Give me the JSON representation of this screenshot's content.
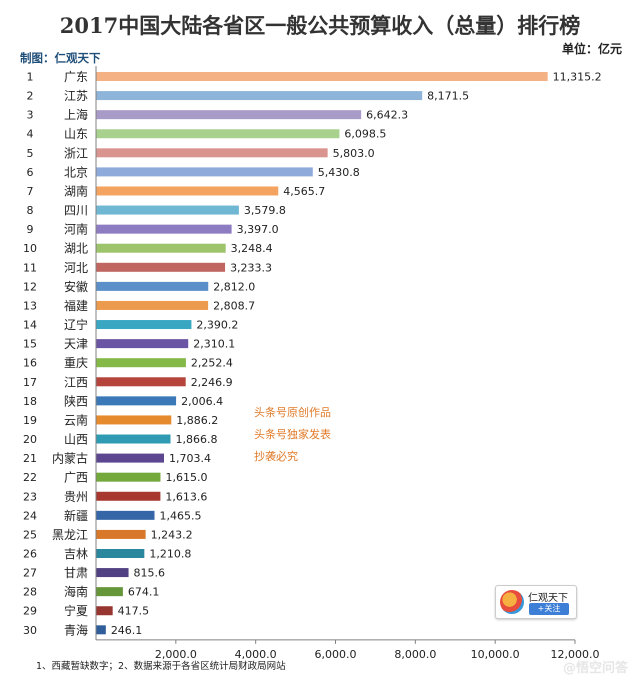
{
  "header": {
    "title": "2017中国大陆各省区一般公共预算收入（总量）排行榜",
    "maker": "制图：仁观天下",
    "unit": "单位：亿元"
  },
  "watermark": {
    "lines": [
      "头条号原创作品",
      "头条号独家发表",
      "抄袭必究"
    ],
    "badge_name": "仁观天下",
    "badge_follow": "+关注"
  },
  "footer": {
    "note": "1、西藏暂缺数字；2、数据来源于各省区统计局财政局网站",
    "site_mark": "@悟空问答"
  },
  "colors": {
    "title": "#333333",
    "maker": "#1f4e79",
    "watermark": "#e07b2a",
    "axis": "#808080"
  },
  "chart_data": {
    "type": "bar",
    "orientation": "horizontal",
    "title": "2017中国大陆各省区一般公共预算收入（总量）排行榜",
    "ylabel": "单位：亿元",
    "xlim": [
      0,
      12000
    ],
    "xticks": [
      2000,
      4000,
      6000,
      8000,
      10000,
      12000
    ],
    "xtick_labels": [
      "2,000.0",
      "4,000.0",
      "6,000.0",
      "8,000.0",
      "10,000.0",
      "12,000.0"
    ],
    "grid": false,
    "ranks": [
      "1",
      "2",
      "3",
      "4",
      "5",
      "6",
      "7",
      "8",
      "9",
      "10",
      "11",
      "12",
      "13",
      "14",
      "15",
      "16",
      "17",
      "18",
      "19",
      "20",
      "21",
      "22",
      "23",
      "24",
      "25",
      "26",
      "27",
      "28",
      "29",
      "30"
    ],
    "categories": [
      "广东",
      "江苏",
      "上海",
      "山东",
      "浙江",
      "北京",
      "湖南",
      "四川",
      "河南",
      "湖北",
      "河北",
      "安徽",
      "福建",
      "辽宁",
      "天津",
      "重庆",
      "江西",
      "陕西",
      "云南",
      "山西",
      "内蒙古",
      "广西",
      "贵州",
      "新疆",
      "黑龙江",
      "吉林",
      "甘肃",
      "海南",
      "宁夏",
      "青海"
    ],
    "values": [
      11315.2,
      8171.5,
      6642.3,
      6098.5,
      5803.0,
      5430.8,
      4565.7,
      3579.8,
      3397.0,
      3248.4,
      3233.3,
      2812.0,
      2808.7,
      2390.2,
      2310.1,
      2252.4,
      2246.9,
      2006.4,
      1886.2,
      1866.8,
      1703.4,
      1615.0,
      1613.6,
      1465.5,
      1243.2,
      1210.8,
      815.6,
      674.1,
      417.5,
      246.1
    ],
    "value_labels": [
      "11,315.2",
      "8,171.5",
      "6,642.3",
      "6,098.5",
      "5,803.0",
      "5,430.8",
      "4,565.7",
      "3,579.8",
      "3,397.0",
      "3,248.4",
      "3,233.3",
      "2,812.0",
      "2,808.7",
      "2,390.2",
      "2,310.1",
      "2,252.4",
      "2,246.9",
      "2,006.4",
      "1,886.2",
      "1,866.8",
      "1,703.4",
      "1,615.0",
      "1,613.6",
      "1,465.5",
      "1,243.2",
      "1,210.8",
      "815.6",
      "674.1",
      "417.5",
      "246.1"
    ],
    "bar_colors": [
      "#f4b183",
      "#8fb4d9",
      "#a99bc7",
      "#a9d18e",
      "#d9948f",
      "#8eaadb",
      "#f4a460",
      "#6fb7d3",
      "#8e7cc3",
      "#9dc36b",
      "#c0655f",
      "#5b8fc9",
      "#ec9a4e",
      "#3aa7c2",
      "#6a55a4",
      "#84b847",
      "#b5443c",
      "#3a78b8",
      "#e68a2e",
      "#2f9bb3",
      "#5d4690",
      "#73a93b",
      "#a8382f",
      "#3466a8",
      "#d7782a",
      "#2a879e",
      "#514082",
      "#65963a",
      "#973530",
      "#2f5e9a"
    ]
  }
}
